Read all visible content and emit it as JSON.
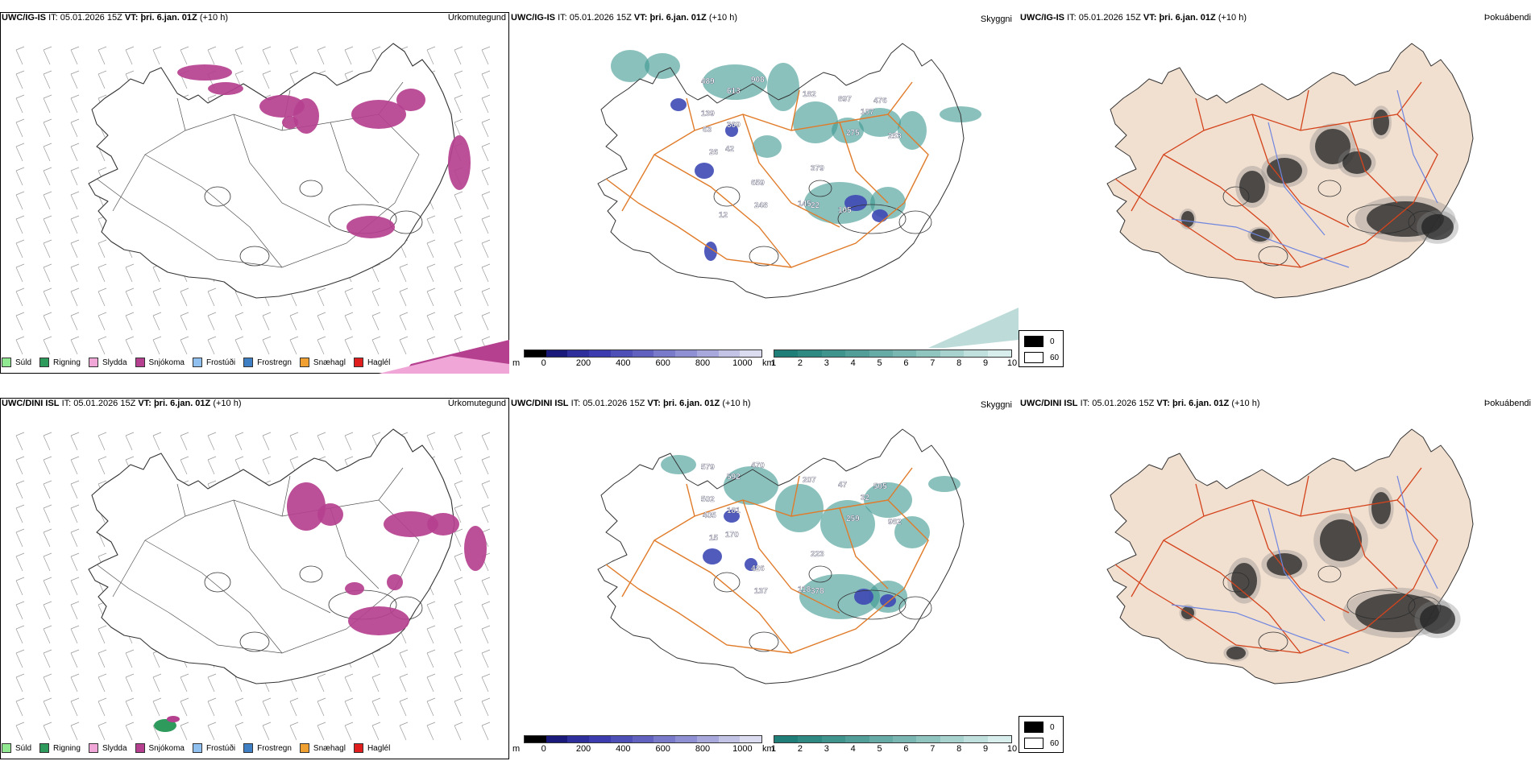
{
  "colors": {
    "coast": "#333333",
    "roads": "#e07b2a",
    "roads_dark": "#d4441c",
    "rivers": "#6f86e0",
    "land_beige": "#f1dfcf",
    "snow": "#b5408f",
    "cloud_teal": "#3e9891",
    "cloud_blue": "#3e49b4"
  },
  "rows": [
    {
      "model": "UWC/IG-IS",
      "it_label": "IT:",
      "it_value": "05.01.2026 15Z",
      "vt_label": "VT:",
      "vt_value": "þri. 6.jan. 01Z",
      "lead": "(+10 h)"
    },
    {
      "model": "UWC/DINI ISL",
      "it_label": "IT:",
      "it_value": "05.01.2026 15Z",
      "vt_label": "VT:",
      "vt_value": "þri. 6.jan. 01Z",
      "lead": "(+10 h)"
    }
  ],
  "panel_types": {
    "precip": "Úrkomutegund",
    "cloud": "Skyggni",
    "fog": "Þokuábendi"
  },
  "precip_legend": [
    {
      "label": "Súld",
      "color": "#90e890"
    },
    {
      "label": "Rigning",
      "color": "#2e9a5c"
    },
    {
      "label": "Slydda",
      "color": "#f1a6d8"
    },
    {
      "label": "Snjókoma",
      "color": "#b5408f"
    },
    {
      "label": "Frostúði",
      "color": "#8fc0ef"
    },
    {
      "label": "Frostregn",
      "color": "#3f7fc4"
    },
    {
      "label": "Snæhagl",
      "color": "#f0a030"
    },
    {
      "label": "Haglél",
      "color": "#e01e1e"
    }
  ],
  "cloudbase_bar": {
    "unit": "m",
    "ticks": [
      "0",
      "200",
      "400",
      "600",
      "800",
      "1000"
    ],
    "colors": [
      "#000000",
      "#1a1a7a",
      "#2e2e9c",
      "#3c3cae",
      "#4f4fb8",
      "#6161c0",
      "#7a7acb",
      "#8f8fd3",
      "#a8a8dc",
      "#c3c3e6",
      "#dcdcf0"
    ]
  },
  "visibility_bar": {
    "unit": "km",
    "ticks": [
      "1",
      "2",
      "3",
      "4",
      "5",
      "6",
      "7",
      "8",
      "9",
      "10"
    ],
    "colors": [
      "#1f7f78",
      "#2f8983",
      "#3f948e",
      "#529f99",
      "#66aba5",
      "#7ab7b2",
      "#90c4bf",
      "#a7d2ce",
      "#bfe0dd",
      "#d8eeec"
    ]
  },
  "fog_legend": [
    {
      "label": "0",
      "color": "#000000"
    },
    {
      "label": "60",
      "color": "#ffffff"
    }
  ],
  "cloud_labels": [
    [
      "489",
      "613",
      "908",
      "139",
      "369",
      "182",
      "897",
      "476",
      "63",
      "107",
      "275",
      "253",
      "26",
      "42",
      "379",
      "659",
      "248",
      "145",
      "22",
      "105",
      "12"
    ],
    [
      "579",
      "592",
      "470",
      "502",
      "181",
      "207",
      "47",
      "505",
      "405",
      "32",
      "259",
      "982",
      "15",
      "170",
      "223",
      "426",
      "137",
      "118",
      "378"
    ]
  ]
}
